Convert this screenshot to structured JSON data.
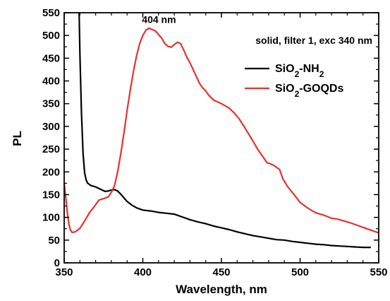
{
  "chart_data": {
    "type": "line",
    "xlabel": "Wavelength, nm",
    "ylabel": "PL",
    "xlim": [
      350,
      550
    ],
    "ylim": [
      0,
      550
    ],
    "x_ticks": [
      350,
      400,
      450,
      500,
      550
    ],
    "y_ticks": [
      0,
      50,
      100,
      150,
      200,
      250,
      300,
      350,
      400,
      450,
      500,
      550
    ],
    "grid": false,
    "legend_position": "top-right",
    "annotations": [
      {
        "text": "404 nm",
        "x": 404,
        "y": 518
      },
      {
        "text": "solid, filter 1, exc 340 nm",
        "x": 500,
        "y": 500
      }
    ],
    "series": [
      {
        "name": "SiO2-NH2",
        "legend_main": "SiO",
        "legend_sub1": "2",
        "legend_rest": "-NH",
        "legend_sub2": "2",
        "color": "#000000",
        "points": [
          [
            359.5,
            550
          ],
          [
            360,
            460
          ],
          [
            361,
            330
          ],
          [
            362,
            240
          ],
          [
            363,
            198
          ],
          [
            364,
            182
          ],
          [
            365,
            175
          ],
          [
            367,
            170
          ],
          [
            370,
            167
          ],
          [
            373,
            162
          ],
          [
            376,
            157
          ],
          [
            378,
            158
          ],
          [
            380,
            160
          ],
          [
            382,
            161
          ],
          [
            384,
            158
          ],
          [
            386,
            151
          ],
          [
            388,
            143
          ],
          [
            390,
            135
          ],
          [
            393,
            127
          ],
          [
            396,
            121
          ],
          [
            400,
            116
          ],
          [
            405,
            114
          ],
          [
            410,
            111
          ],
          [
            415,
            109
          ],
          [
            420,
            107
          ],
          [
            425,
            101
          ],
          [
            430,
            95
          ],
          [
            435,
            90
          ],
          [
            440,
            86
          ],
          [
            445,
            81
          ],
          [
            450,
            77
          ],
          [
            455,
            73
          ],
          [
            460,
            68
          ],
          [
            465,
            64
          ],
          [
            470,
            60
          ],
          [
            475,
            57
          ],
          [
            480,
            54
          ],
          [
            485,
            51
          ],
          [
            490,
            50
          ],
          [
            495,
            47
          ],
          [
            500,
            45
          ],
          [
            505,
            43
          ],
          [
            510,
            41
          ],
          [
            515,
            40
          ],
          [
            520,
            38
          ],
          [
            525,
            37
          ],
          [
            530,
            36
          ],
          [
            535,
            35
          ],
          [
            540,
            34
          ],
          [
            545,
            34
          ]
        ]
      },
      {
        "name": "SiO2-GOQDs",
        "legend_main": "SiO",
        "legend_sub1": "2",
        "legend_rest": "-GOQDs",
        "legend_sub2": "",
        "color": "#e8312f",
        "points": [
          [
            350,
            175
          ],
          [
            351,
            145
          ],
          [
            352,
            110
          ],
          [
            353,
            85
          ],
          [
            354,
            72
          ],
          [
            355,
            67
          ],
          [
            357,
            68
          ],
          [
            360,
            76
          ],
          [
            363,
            92
          ],
          [
            366,
            110
          ],
          [
            369,
            123
          ],
          [
            372,
            138
          ],
          [
            375,
            141
          ],
          [
            378,
            145
          ],
          [
            380,
            155
          ],
          [
            382,
            170
          ],
          [
            384,
            200
          ],
          [
            386,
            240
          ],
          [
            388,
            285
          ],
          [
            390,
            335
          ],
          [
            392,
            380
          ],
          [
            394,
            420
          ],
          [
            396,
            455
          ],
          [
            398,
            482
          ],
          [
            400,
            500
          ],
          [
            402,
            512
          ],
          [
            404,
            516
          ],
          [
            406,
            513
          ],
          [
            408,
            510
          ],
          [
            410,
            502
          ],
          [
            412,
            494
          ],
          [
            414,
            482
          ],
          [
            416,
            476
          ],
          [
            418,
            474
          ],
          [
            420,
            480
          ],
          [
            422,
            485
          ],
          [
            424,
            482
          ],
          [
            426,
            468
          ],
          [
            428,
            452
          ],
          [
            430,
            440
          ],
          [
            432,
            425
          ],
          [
            434,
            410
          ],
          [
            436,
            395
          ],
          [
            438,
            385
          ],
          [
            440,
            378
          ],
          [
            442,
            368
          ],
          [
            445,
            358
          ],
          [
            450,
            350
          ],
          [
            455,
            340
          ],
          [
            458,
            330
          ],
          [
            461,
            318
          ],
          [
            464,
            302
          ],
          [
            467,
            285
          ],
          [
            470,
            268
          ],
          [
            473,
            250
          ],
          [
            476,
            235
          ],
          [
            479,
            220
          ],
          [
            481,
            218
          ],
          [
            483,
            215
          ],
          [
            485,
            210
          ],
          [
            487,
            205
          ],
          [
            489,
            185
          ],
          [
            492,
            168
          ],
          [
            495,
            155
          ],
          [
            498,
            142
          ],
          [
            500,
            133
          ],
          [
            503,
            125
          ],
          [
            506,
            118
          ],
          [
            510,
            110
          ],
          [
            515,
            105
          ],
          [
            520,
            98
          ],
          [
            524,
            96
          ],
          [
            528,
            92
          ],
          [
            532,
            88
          ],
          [
            536,
            83
          ],
          [
            540,
            78
          ],
          [
            545,
            72
          ],
          [
            550,
            66
          ]
        ]
      }
    ]
  }
}
